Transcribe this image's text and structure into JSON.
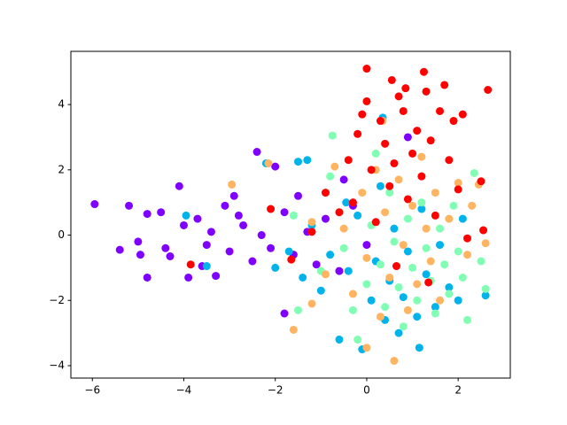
{
  "chart_data": {
    "type": "scatter",
    "xlim": [
      -6.47,
      3.14
    ],
    "ylim": [
      -4.38,
      5.63
    ],
    "xticks": [
      {
        "value": -6,
        "label": "−6"
      },
      {
        "value": -4,
        "label": "−4"
      },
      {
        "value": -2,
        "label": "−2"
      },
      0,
      2
    ],
    "yticks": [
      {
        "value": -4,
        "label": "−4"
      },
      {
        "value": -2,
        "label": "−2"
      },
      0,
      2,
      4
    ],
    "grid": false,
    "series": [
      {
        "color": "#8000ff",
        "x": [
          -5.95,
          -5.4,
          -5.2,
          -5.0,
          -4.95,
          -4.8,
          -4.8,
          -4.5,
          -4.4,
          -4.3,
          -4.1,
          -4.0,
          -3.9,
          -3.7,
          -3.5,
          -3.4,
          -3.3,
          -3.1,
          -3.0,
          -2.9,
          -2.7,
          -2.5,
          -2.4,
          -2.3,
          -2.1,
          -2.0,
          -1.8,
          -1.6,
          -1.5,
          -1.3,
          -1.1,
          -0.9,
          -0.6,
          -0.3,
          0.0,
          -1.8,
          -0.5,
          0.9,
          -3.6,
          -2.8
        ],
        "y": [
          0.95,
          -0.45,
          0.9,
          -0.2,
          -0.6,
          -1.3,
          0.65,
          0.7,
          -0.4,
          -0.65,
          1.5,
          0.3,
          -1.3,
          0.5,
          -0.3,
          0.1,
          -1.25,
          0.9,
          -0.5,
          1.2,
          0.3,
          -0.8,
          2.55,
          0.0,
          -0.4,
          2.1,
          0.7,
          -0.6,
          1.2,
          0.1,
          -0.9,
          0.5,
          -1.1,
          0.9,
          -0.3,
          -2.4,
          1.7,
          3.0,
          -0.95,
          0.6
        ]
      },
      {
        "color": "#00b4eb",
        "x": [
          -2.2,
          -1.5,
          -1.3,
          -2.0,
          -1.7,
          -1.4,
          -1.2,
          -1.0,
          -0.8,
          -0.6,
          -0.4,
          -0.2,
          -0.1,
          0.1,
          0.2,
          0.3,
          0.4,
          0.5,
          0.6,
          0.7,
          0.8,
          0.9,
          1.1,
          1.2,
          1.3,
          1.5,
          1.6,
          1.8,
          2.0,
          2.1,
          2.6,
          1.15,
          -3.95,
          -3.5,
          -0.45,
          0.35
        ],
        "y": [
          2.2,
          2.25,
          2.3,
          -1.0,
          -0.5,
          -1.3,
          0.3,
          -1.7,
          -0.6,
          -3.2,
          -1.1,
          0.6,
          -3.5,
          -2.0,
          -0.8,
          1.5,
          -2.6,
          -1.4,
          0.2,
          -3.0,
          -1.9,
          -0.5,
          -2.5,
          0.8,
          -1.2,
          -2.2,
          -0.3,
          -1.6,
          -2.0,
          0.5,
          -1.85,
          -3.45,
          0.6,
          -0.95,
          1.0,
          3.6
        ]
      },
      {
        "color": "#80ffb4",
        "x": [
          -0.75,
          -1.5,
          -1.0,
          -0.5,
          -0.3,
          -0.2,
          0.0,
          0.1,
          0.3,
          0.4,
          0.5,
          0.6,
          0.7,
          0.8,
          0.9,
          1.0,
          1.1,
          1.2,
          1.3,
          1.4,
          1.5,
          1.6,
          1.7,
          1.8,
          1.9,
          2.0,
          2.1,
          2.35,
          2.6,
          2.5,
          -1.6,
          -0.8,
          0.2,
          2.2
        ],
        "y": [
          3.05,
          -2.3,
          -1.1,
          -0.4,
          -2.3,
          -3.2,
          -1.5,
          0.3,
          -0.9,
          -2.2,
          1.3,
          -0.2,
          -1.6,
          -2.8,
          0.5,
          -1.0,
          -2.0,
          1.0,
          -0.4,
          -1.4,
          -2.4,
          0.2,
          -0.9,
          -1.8,
          0.9,
          -0.5,
          -1.3,
          1.9,
          -1.65,
          -0.8,
          0.6,
          1.8,
          2.5,
          -2.6
        ]
      },
      {
        "color": "#ffb462",
        "x": [
          -2.95,
          -2.15,
          -1.6,
          -1.2,
          -0.9,
          -0.7,
          -0.5,
          -0.3,
          -0.1,
          0.0,
          0.0,
          0.2,
          0.3,
          0.4,
          0.5,
          0.6,
          0.7,
          0.8,
          0.9,
          1.0,
          1.1,
          1.2,
          1.3,
          1.4,
          1.5,
          1.6,
          1.8,
          2.0,
          2.2,
          2.3,
          2.6,
          2.45,
          0.35,
          -1.2
        ],
        "y": [
          1.55,
          2.2,
          -2.9,
          -2.1,
          -1.2,
          2.1,
          0.2,
          -1.8,
          1.3,
          -0.7,
          -3.45,
          2.0,
          -2.5,
          0.7,
          -1.3,
          -3.85,
          1.7,
          -0.3,
          -2.3,
          0.9,
          -1.5,
          2.4,
          0.2,
          -0.8,
          1.3,
          -2.0,
          0.5,
          1.6,
          -0.6,
          0.9,
          -0.25,
          1.55,
          3.5,
          0.4
        ]
      },
      {
        "color": "#ff0000",
        "x": [
          -3.85,
          -2.1,
          -1.65,
          -1.2,
          -0.9,
          -0.6,
          -0.4,
          -0.3,
          -0.2,
          -0.1,
          0.0,
          0.0,
          0.1,
          0.2,
          0.3,
          0.4,
          0.5,
          0.55,
          0.6,
          0.7,
          0.8,
          0.85,
          0.9,
          1.0,
          1.1,
          1.2,
          1.25,
          1.3,
          1.4,
          1.5,
          1.6,
          1.7,
          1.8,
          1.9,
          2.0,
          2.1,
          2.2,
          2.5,
          2.65,
          2.55,
          1.35,
          0.65
        ],
        "y": [
          -0.9,
          0.8,
          -0.75,
          0.1,
          1.3,
          0.7,
          2.3,
          1.0,
          3.1,
          3.7,
          5.1,
          4.1,
          2.0,
          0.4,
          3.5,
          2.8,
          1.5,
          4.75,
          2.2,
          4.25,
          3.8,
          4.5,
          1.1,
          2.5,
          3.2,
          1.8,
          5.0,
          4.4,
          2.9,
          0.6,
          3.8,
          4.6,
          2.3,
          3.5,
          1.4,
          3.7,
          -0.1,
          1.65,
          4.45,
          0.15,
          -1.45,
          -0.95
        ]
      }
    ]
  }
}
